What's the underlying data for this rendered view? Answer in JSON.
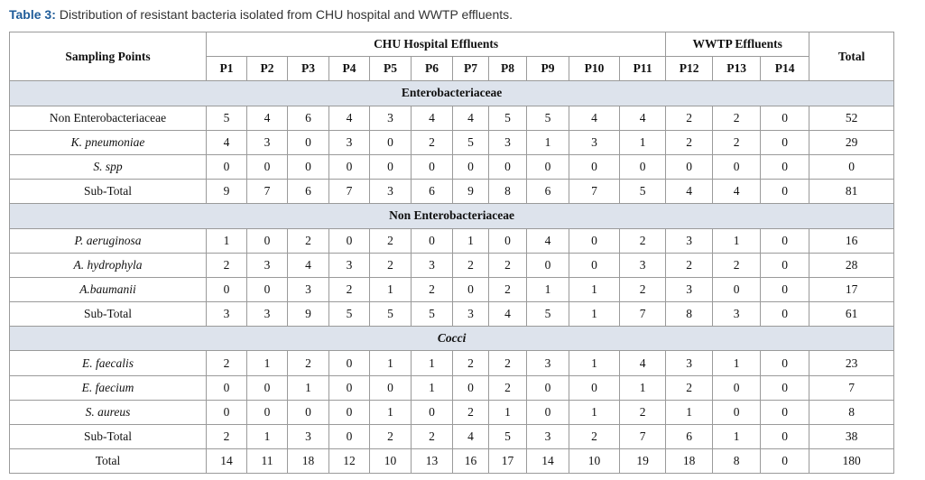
{
  "caption": {
    "label": "Table 3:",
    "text": "Distribution of resistant bacteria isolated from CHU hospital and WWTP effluents."
  },
  "table": {
    "header": {
      "row_header": "Sampling Points",
      "groups": [
        "CHU Hospital Effluents",
        "WWTP Effluents"
      ],
      "total": "Total",
      "points": [
        "P1",
        "P2",
        "P3",
        "P4",
        "P5",
        "P6",
        "P7",
        "P8",
        "P9",
        "P10",
        "P11",
        "P12",
        "P13",
        "P14"
      ]
    },
    "sections": [
      {
        "title": "Enterobacteriaceae",
        "italic": false,
        "rows": [
          {
            "label": "Non Enterobacteriaceae",
            "italic": false,
            "values": [
              5,
              4,
              6,
              4,
              3,
              4,
              4,
              5,
              5,
              4,
              4,
              2,
              2,
              0
            ],
            "total": 52
          },
          {
            "label": "K. pneumoniae",
            "italic": true,
            "values": [
              4,
              3,
              0,
              3,
              0,
              2,
              5,
              3,
              1,
              3,
              1,
              2,
              2,
              0
            ],
            "total": 29
          },
          {
            "label": "S. spp",
            "italic": true,
            "values": [
              0,
              0,
              0,
              0,
              0,
              0,
              0,
              0,
              0,
              0,
              0,
              0,
              0,
              0
            ],
            "total": 0
          },
          {
            "label": "Sub-Total",
            "italic": false,
            "values": [
              9,
              7,
              6,
              7,
              3,
              6,
              9,
              8,
              6,
              7,
              5,
              4,
              4,
              0
            ],
            "total": 81
          }
        ]
      },
      {
        "title": "Non Enterobacteriaceae",
        "italic": false,
        "rows": [
          {
            "label": "P. aeruginosa",
            "italic": true,
            "values": [
              1,
              0,
              2,
              0,
              2,
              0,
              1,
              0,
              4,
              0,
              2,
              3,
              1,
              0
            ],
            "total": 16
          },
          {
            "label": "A. hydrophyla",
            "italic": true,
            "values": [
              2,
              3,
              4,
              3,
              2,
              3,
              2,
              2,
              0,
              0,
              3,
              2,
              2,
              0
            ],
            "total": 28
          },
          {
            "label": "A.baumanii",
            "italic": true,
            "values": [
              0,
              0,
              3,
              2,
              1,
              2,
              0,
              2,
              1,
              1,
              2,
              3,
              0,
              0
            ],
            "total": 17
          },
          {
            "label": "Sub-Total",
            "italic": false,
            "values": [
              3,
              3,
              9,
              5,
              5,
              5,
              3,
              4,
              5,
              1,
              7,
              8,
              3,
              0
            ],
            "total": 61
          }
        ]
      },
      {
        "title": "Cocci",
        "italic": true,
        "rows": [
          {
            "label": "E. faecalis",
            "italic": true,
            "values": [
              2,
              1,
              2,
              0,
              1,
              1,
              2,
              2,
              3,
              1,
              4,
              3,
              1,
              0
            ],
            "total": 23
          },
          {
            "label": "E. faecium",
            "italic": true,
            "values": [
              0,
              0,
              1,
              0,
              0,
              1,
              0,
              2,
              0,
              0,
              1,
              2,
              0,
              0
            ],
            "total": 7
          },
          {
            "label": "S. aureus",
            "italic": true,
            "values": [
              0,
              0,
              0,
              0,
              1,
              0,
              2,
              1,
              0,
              1,
              2,
              1,
              0,
              0
            ],
            "total": 8
          },
          {
            "label": "Sub-Total",
            "italic": false,
            "values": [
              2,
              1,
              3,
              0,
              2,
              2,
              4,
              5,
              3,
              2,
              7,
              6,
              1,
              0
            ],
            "total": 38
          }
        ]
      }
    ],
    "total_row": {
      "label": "Total",
      "values": [
        14,
        11,
        18,
        12,
        10,
        13,
        16,
        17,
        14,
        10,
        19,
        18,
        8,
        0
      ],
      "total": 180
    }
  }
}
